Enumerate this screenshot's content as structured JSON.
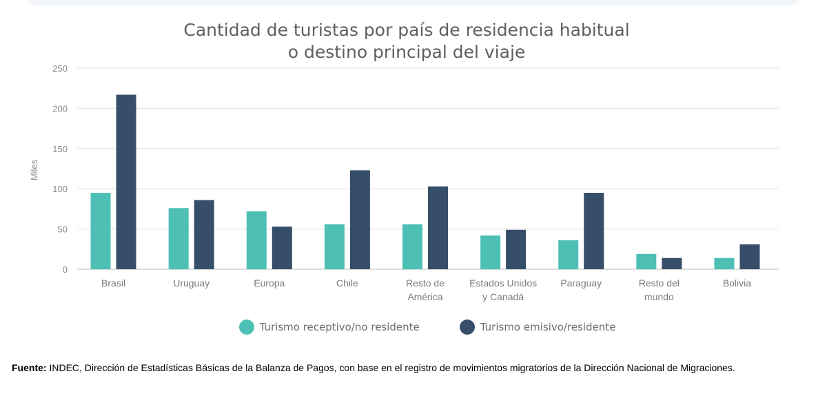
{
  "chart_data": {
    "type": "bar",
    "title_lines": [
      "Cantidad de turistas por país de residencia habitual",
      "o destino principal del viaje"
    ],
    "ylabel": "Miles",
    "xlabel": "",
    "ylim": [
      0,
      250
    ],
    "yticks": [
      0,
      50,
      100,
      150,
      200,
      250
    ],
    "grid": true,
    "legend_position": "bottom",
    "categories": [
      [
        "Brasil"
      ],
      [
        "Uruguay"
      ],
      [
        "Europa"
      ],
      [
        "Chile"
      ],
      [
        "Resto de",
        "América"
      ],
      [
        "Estados Unidos",
        "y Canadá"
      ],
      [
        "Paraguay"
      ],
      [
        "Resto del",
        "mundo"
      ],
      [
        "Bolivia"
      ]
    ],
    "series": [
      {
        "name": "Turismo receptivo/no residente",
        "color": "#4dbfb5",
        "values": [
          95,
          76,
          72,
          56,
          56,
          42,
          36,
          19,
          14
        ]
      },
      {
        "name": "Turismo emisivo/residente",
        "color": "#364e6a",
        "values": [
          217,
          86,
          53,
          123,
          103,
          49,
          95,
          14,
          31
        ]
      }
    ]
  },
  "source": {
    "label": "Fuente:",
    "text": " INDEC, Dirección de Estadísticas Básicas de la Balanza de Pagos, con base en el registro de movimientos migratorios de la Dirección Nacional de Migraciones."
  }
}
